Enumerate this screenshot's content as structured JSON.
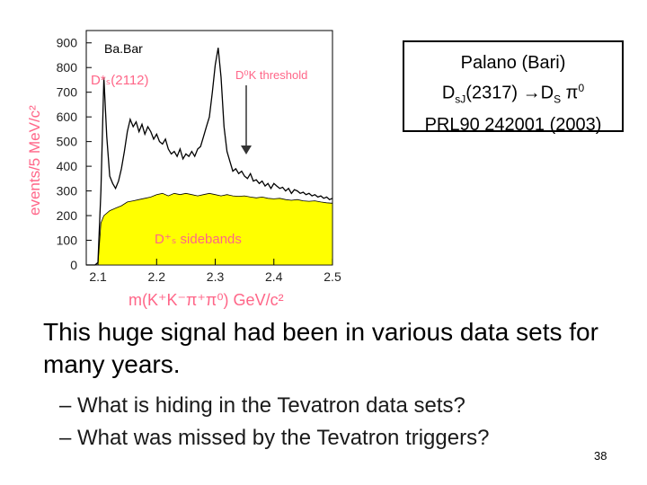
{
  "chart_data": {
    "type": "line",
    "label": "Ba.Bar",
    "xlabel": "m(K⁺K⁻π⁺π⁰) GeV/c²",
    "ylabel": "events/5 MeV/c²",
    "xlim": [
      2.08,
      2.5
    ],
    "ylim": [
      0,
      950
    ],
    "xticks": [
      "2.1",
      "2.2",
      "2.3",
      "2.4",
      "2.5"
    ],
    "yticks": [
      "0",
      "100",
      "200",
      "300",
      "400",
      "500",
      "600",
      "700",
      "800",
      "900"
    ],
    "annotations": {
      "ds_star": "D*ₛ(2112)",
      "threshold": "D⁰K threshold",
      "sidebands": "D⁺ₛ sidebands"
    },
    "series": [
      {
        "values": [
          [
            2.08,
            0
          ],
          [
            2.09,
            0
          ],
          [
            2.095,
            0
          ],
          [
            2.1,
            10
          ],
          [
            2.105,
            300
          ],
          [
            2.11,
            760
          ],
          [
            2.115,
            520
          ],
          [
            2.12,
            360
          ],
          [
            2.125,
            330
          ],
          [
            2.13,
            310
          ],
          [
            2.135,
            340
          ],
          [
            2.14,
            390
          ],
          [
            2.145,
            460
          ],
          [
            2.15,
            540
          ],
          [
            2.155,
            590
          ],
          [
            2.16,
            560
          ],
          [
            2.165,
            580
          ],
          [
            2.17,
            540
          ],
          [
            2.175,
            570
          ],
          [
            2.18,
            530
          ],
          [
            2.185,
            560
          ],
          [
            2.19,
            540
          ],
          [
            2.195,
            510
          ],
          [
            2.2,
            530
          ],
          [
            2.205,
            500
          ],
          [
            2.21,
            490
          ],
          [
            2.215,
            510
          ],
          [
            2.22,
            470
          ],
          [
            2.225,
            450
          ],
          [
            2.23,
            460
          ],
          [
            2.235,
            440
          ],
          [
            2.24,
            470
          ],
          [
            2.245,
            430
          ],
          [
            2.25,
            450
          ],
          [
            2.255,
            440
          ],
          [
            2.26,
            460
          ],
          [
            2.265,
            440
          ],
          [
            2.27,
            470
          ],
          [
            2.275,
            480
          ],
          [
            2.28,
            520
          ],
          [
            2.285,
            560
          ],
          [
            2.29,
            600
          ],
          [
            2.295,
            700
          ],
          [
            2.3,
            810
          ],
          [
            2.305,
            880
          ],
          [
            2.31,
            760
          ],
          [
            2.315,
            560
          ],
          [
            2.32,
            460
          ],
          [
            2.325,
            420
          ],
          [
            2.33,
            380
          ],
          [
            2.335,
            390
          ],
          [
            2.34,
            370
          ],
          [
            2.345,
            380
          ],
          [
            2.35,
            360
          ],
          [
            2.355,
            350
          ],
          [
            2.36,
            370
          ],
          [
            2.365,
            340
          ],
          [
            2.37,
            345
          ],
          [
            2.375,
            330
          ],
          [
            2.38,
            340
          ],
          [
            2.385,
            320
          ],
          [
            2.39,
            330
          ],
          [
            2.395,
            310
          ],
          [
            2.4,
            330
          ],
          [
            2.405,
            320
          ],
          [
            2.41,
            310
          ],
          [
            2.415,
            315
          ],
          [
            2.42,
            300
          ],
          [
            2.425,
            310
          ],
          [
            2.43,
            290
          ],
          [
            2.435,
            305
          ],
          [
            2.44,
            300
          ],
          [
            2.445,
            290
          ],
          [
            2.45,
            295
          ],
          [
            2.455,
            285
          ],
          [
            2.46,
            290
          ],
          [
            2.465,
            280
          ],
          [
            2.47,
            285
          ],
          [
            2.475,
            275
          ],
          [
            2.48,
            280
          ],
          [
            2.485,
            270
          ],
          [
            2.49,
            275
          ],
          [
            2.495,
            265
          ],
          [
            2.5,
            270
          ]
        ]
      },
      {
        "values": [
          [
            2.1,
            0
          ],
          [
            2.105,
            170
          ],
          [
            2.11,
            200
          ],
          [
            2.12,
            220
          ],
          [
            2.13,
            230
          ],
          [
            2.14,
            240
          ],
          [
            2.15,
            255
          ],
          [
            2.16,
            260
          ],
          [
            2.17,
            265
          ],
          [
            2.18,
            270
          ],
          [
            2.19,
            275
          ],
          [
            2.2,
            285
          ],
          [
            2.21,
            290
          ],
          [
            2.22,
            280
          ],
          [
            2.23,
            290
          ],
          [
            2.24,
            285
          ],
          [
            2.25,
            290
          ],
          [
            2.26,
            285
          ],
          [
            2.27,
            280
          ],
          [
            2.28,
            285
          ],
          [
            2.29,
            290
          ],
          [
            2.3,
            285
          ],
          [
            2.31,
            280
          ],
          [
            2.32,
            285
          ],
          [
            2.33,
            280
          ],
          [
            2.34,
            278
          ],
          [
            2.35,
            280
          ],
          [
            2.36,
            275
          ],
          [
            2.37,
            272
          ],
          [
            2.38,
            275
          ],
          [
            2.39,
            270
          ],
          [
            2.4,
            268
          ],
          [
            2.41,
            270
          ],
          [
            2.42,
            265
          ],
          [
            2.43,
            262
          ],
          [
            2.44,
            265
          ],
          [
            2.45,
            260
          ],
          [
            2.46,
            258
          ],
          [
            2.47,
            260
          ],
          [
            2.48,
            255
          ],
          [
            2.49,
            252
          ],
          [
            2.5,
            250
          ]
        ]
      }
    ],
    "colors": {
      "axis": "#ff6688",
      "fill": "#ffff00",
      "signal": "#000000"
    }
  },
  "infobox": {
    "line1": "Palano (Bari)",
    "line2_a": "D",
    "line2_a_sub": "sJ",
    "line2_b": "(2317) ",
    "line2_arrow": "→",
    "line2_c": "D",
    "line2_c_sub": "S",
    "line2_d": " π",
    "line2_d_sup": "0",
    "line3": "PRL90 242001 (2003)"
  },
  "main_text": "This huge signal had been in various data sets for many years.",
  "bullets": [
    "– What is hiding in the Tevatron data sets?",
    "– What was missed by the Tevatron triggers?"
  ],
  "page_number": "38"
}
